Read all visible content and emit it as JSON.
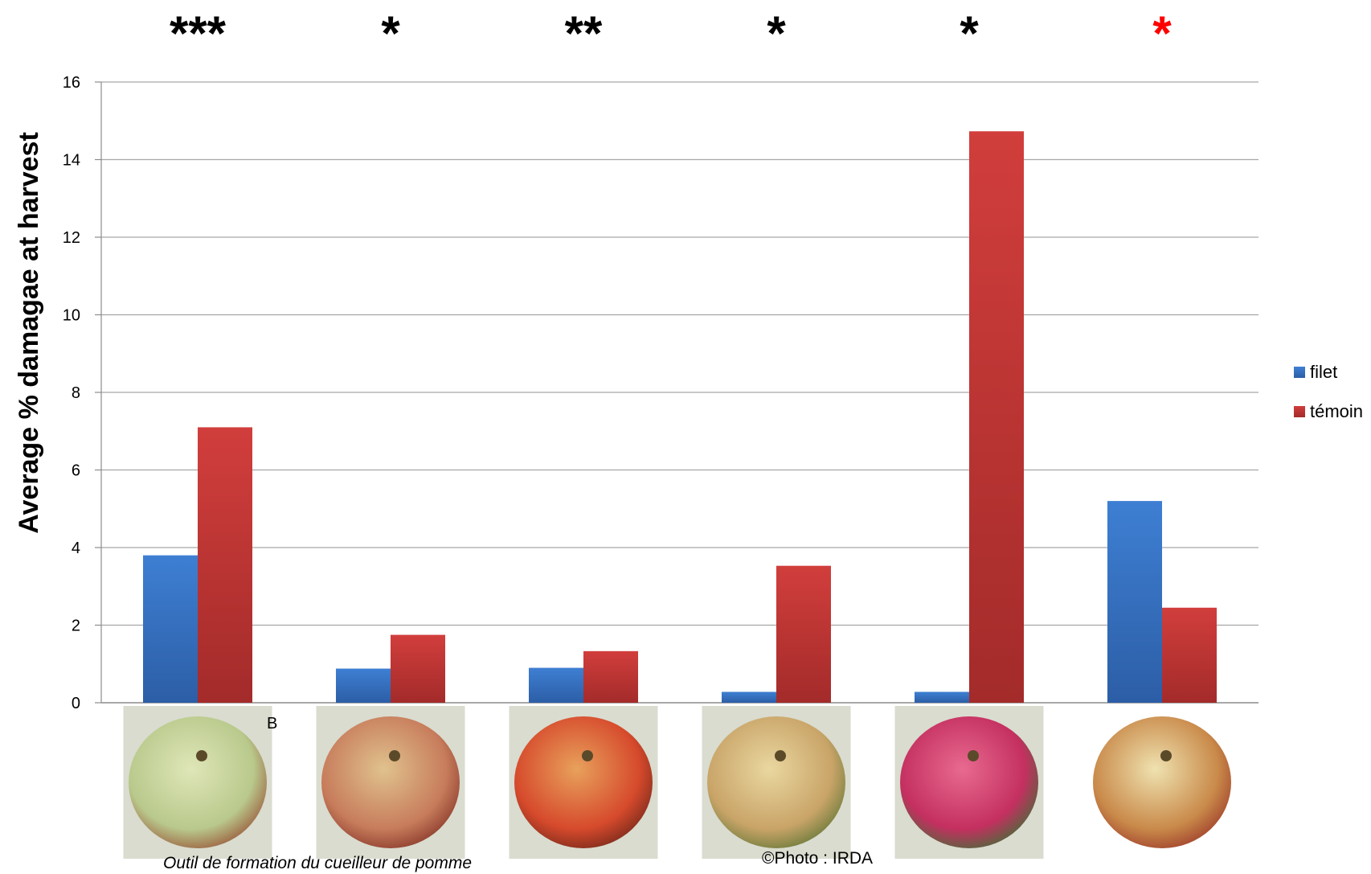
{
  "chart_data": {
    "type": "bar",
    "title": "",
    "xlabel": "",
    "ylabel": "Average % damagae at harvest",
    "ylim": [
      0,
      16
    ],
    "yticks": [
      "0",
      "2",
      "4",
      "6",
      "8",
      "10",
      "12",
      "14",
      "16"
    ],
    "grid": true,
    "legend_position": "right",
    "categories": [
      "",
      "",
      "",
      "",
      "",
      ""
    ],
    "series": [
      {
        "name": "filet",
        "color": "#3a74c4",
        "values": [
          3.8,
          0.88,
          0.9,
          0.28,
          0.28,
          5.2
        ]
      },
      {
        "name": "témoin",
        "color": "#c83a38",
        "values": [
          7.1,
          1.75,
          1.33,
          3.53,
          14.73,
          2.45
        ]
      }
    ],
    "significance": [
      {
        "text": "***",
        "color": "#000000"
      },
      {
        "text": "*",
        "color": "#000000"
      },
      {
        "text": "**",
        "color": "#000000"
      },
      {
        "text": "*",
        "color": "#000000"
      },
      {
        "text": "*",
        "color": "#000000"
      },
      {
        "text": "*",
        "color": "#ff0000"
      }
    ]
  },
  "captions": {
    "left": "Outil de formation du cueilleur de pomme",
    "right": "©Photo : IRDA",
    "photo1_mark": "B"
  },
  "photos": [
    {
      "name": "apple-photo-1",
      "colors": [
        "#b9c98c",
        "#dfe6b8",
        "#9a5a3c"
      ]
    },
    {
      "name": "apple-photo-2",
      "colors": [
        "#c77c5b",
        "#e0c28e",
        "#8a3a2c"
      ]
    },
    {
      "name": "apple-photo-3",
      "colors": [
        "#d64a2c",
        "#e8a15c",
        "#7a2a1c"
      ]
    },
    {
      "name": "apple-photo-4",
      "colors": [
        "#c9a468",
        "#e9d7a0",
        "#6a7a3a"
      ]
    },
    {
      "name": "apple-photo-5",
      "colors": [
        "#c43060",
        "#e86a90",
        "#4a6a3a"
      ]
    },
    {
      "name": "apple-photo-6",
      "colors": [
        "#c98a4a",
        "#efe2b0",
        "#a0402c"
      ]
    }
  ]
}
